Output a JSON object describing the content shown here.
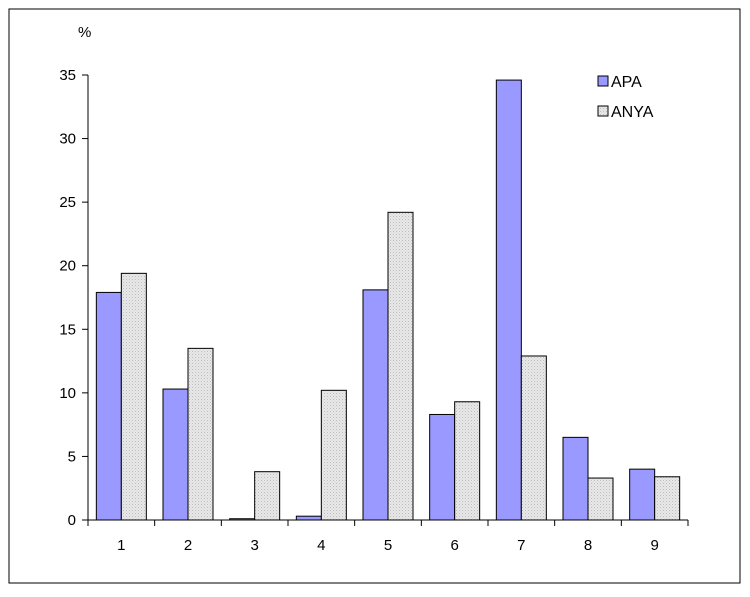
{
  "chart_data": {
    "type": "bar",
    "title": "",
    "xlabel": "",
    "ylabel": "%",
    "ylim": [
      0,
      35
    ],
    "yticks": [
      0,
      5,
      10,
      15,
      20,
      25,
      30,
      35
    ],
    "categories": [
      "1",
      "2",
      "3",
      "4",
      "5",
      "6",
      "7",
      "8",
      "9"
    ],
    "grid": false,
    "legend_position": "top-right",
    "series": [
      {
        "name": "APA",
        "color": "#9999ff",
        "values": [
          17.9,
          10.3,
          0.1,
          0.3,
          18.1,
          8.3,
          34.6,
          6.5,
          4.0
        ]
      },
      {
        "name": "ANYA",
        "color": "#e6e6e6",
        "values": [
          19.4,
          13.5,
          3.8,
          10.2,
          24.2,
          9.3,
          12.9,
          3.3,
          3.4
        ]
      }
    ]
  }
}
